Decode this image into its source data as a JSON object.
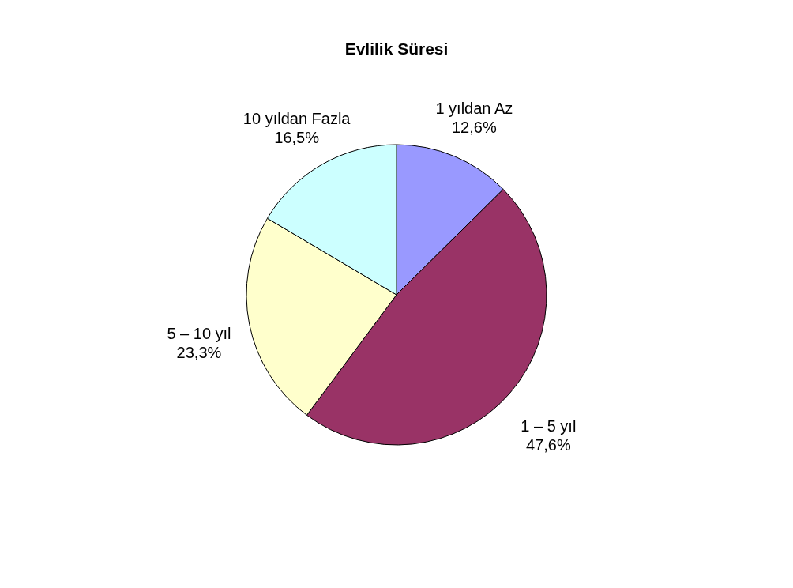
{
  "chart_data": {
    "type": "pie",
    "title": "Evlilik Süresi",
    "categories": [
      "1 yıldan Az",
      "1 – 5 yıl",
      "5 – 10 yıl",
      "10 yıldan Fazla"
    ],
    "values": [
      12.6,
      47.6,
      23.3,
      16.5
    ],
    "value_labels": [
      "12,6%",
      "47,6%",
      "23,3%",
      "16,5%"
    ],
    "colors": [
      "#9999ff",
      "#993366",
      "#ffffcc",
      "#ccffff"
    ],
    "legend": false
  }
}
